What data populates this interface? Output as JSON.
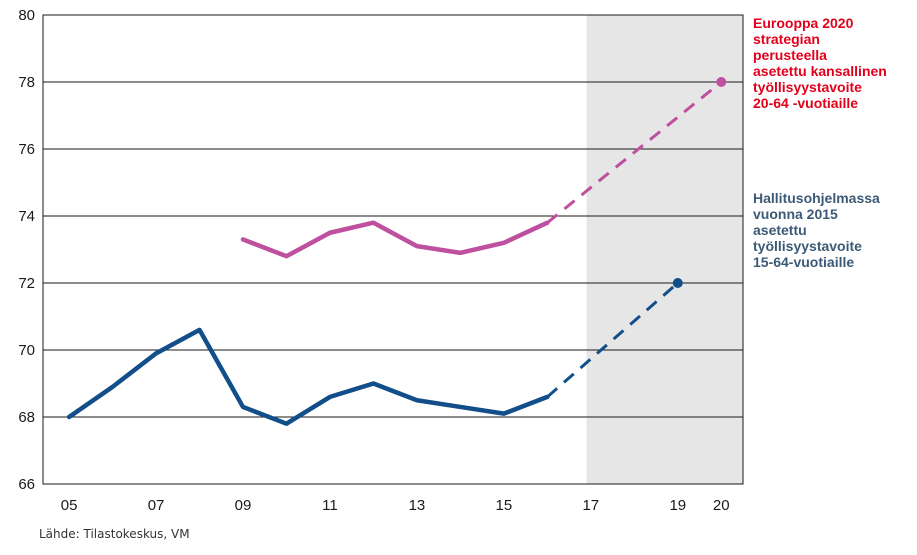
{
  "chart_data": {
    "type": "line",
    "x_ticks": [
      {
        "x": 2005,
        "label": "05"
      },
      {
        "x": 2007,
        "label": "07"
      },
      {
        "x": 2009,
        "label": "09"
      },
      {
        "x": 2011,
        "label": "11"
      },
      {
        "x": 2013,
        "label": "13"
      },
      {
        "x": 2015,
        "label": "15"
      },
      {
        "x": 2017,
        "label": "17"
      },
      {
        "x": 2019,
        "label": "19"
      },
      {
        "x": 2020,
        "label": "20"
      }
    ],
    "y_ticks": [
      66,
      68,
      70,
      72,
      74,
      76,
      78,
      80
    ],
    "ylim": [
      66,
      80
    ],
    "xlim": [
      2004.4,
      2020.5
    ],
    "shaded_x_range": [
      2016.9,
      2020.5
    ],
    "grid": "horizontal",
    "series": [
      {
        "color": "#bf4f9f",
        "actual": {
          "x": [
            2009,
            2010,
            2011,
            2012,
            2013,
            2014,
            2015,
            2016
          ],
          "y": [
            73.3,
            72.8,
            73.5,
            73.8,
            73.1,
            72.9,
            73.2,
            73.8
          ]
        },
        "target": {
          "x": [
            2016,
            2020
          ],
          "y": [
            73.8,
            78.0
          ]
        }
      },
      {
        "color": "#124e8a",
        "actual": {
          "x": [
            2005,
            2006,
            2007,
            2008,
            2009,
            2010,
            2011,
            2012,
            2013,
            2014,
            2015,
            2016
          ],
          "y": [
            68.0,
            68.9,
            69.9,
            70.6,
            68.3,
            67.8,
            68.6,
            69.0,
            68.5,
            68.3,
            68.1,
            68.6
          ]
        },
        "target": {
          "x": [
            2016,
            2019
          ],
          "y": [
            68.6,
            72.0
          ]
        }
      }
    ],
    "annotations": [
      {
        "color": "#e3001b",
        "lines": [
          "Eurooppa 2020",
          "strategian",
          "perusteella",
          "asetettu kansallinen",
          "työllisyystavoite",
          "20-64 -vuotiaille"
        ]
      },
      {
        "color": "#3c5a78",
        "lines": [
          "Hallitusohjelmassa",
          "vuonna 2015",
          "asetettu",
          "työllisyystavoite",
          "15-64-vuotiaille"
        ]
      }
    ]
  },
  "source": "Lähde: Tilastokeskus, VM"
}
